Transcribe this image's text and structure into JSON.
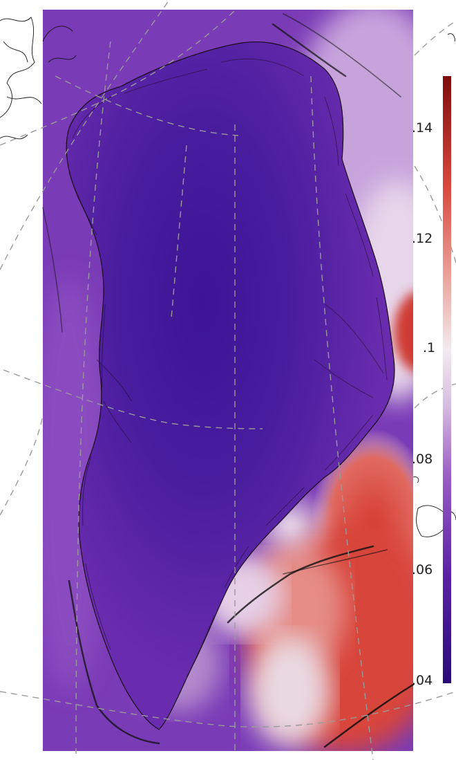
{
  "colorbar": {
    "colormap": "purple-white-red diverging",
    "ticks": [
      ".14",
      ".12",
      ".1",
      ".08",
      ".06",
      ".04"
    ],
    "range": [
      0.04,
      0.15
    ],
    "colors": [
      "#2a0a7a",
      "#4b1a9a",
      "#7a3ab0",
      "#c9a6d8",
      "#f1e4ea",
      "#ec9b94",
      "#d64a3e",
      "#8c0d0d"
    ]
  },
  "map": {
    "region": "Greenland",
    "graticule": true,
    "coastline_color": "#000000",
    "field_colors": {
      "interior": "#4a1a9e",
      "margin": "#7a38b8",
      "ocean_warm": "#d9443a",
      "neutral": "#ece2e8"
    }
  }
}
